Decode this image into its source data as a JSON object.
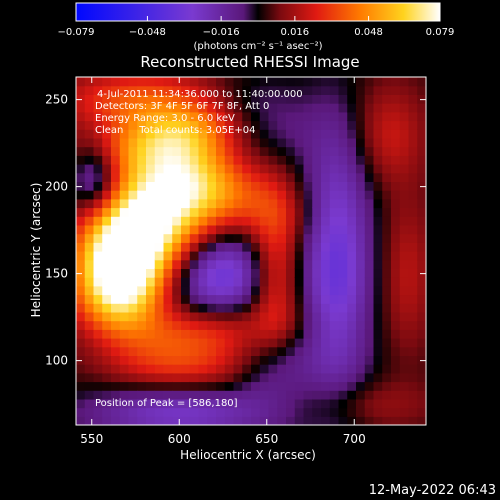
{
  "chart_data": {
    "type": "heatmap",
    "title": "Reconstructed RHESSI Image",
    "xlabel": "Heliocentric X (arcsec)",
    "ylabel": "Heliocentric Y (arcsec)",
    "xlim": [
      541,
      741
    ],
    "ylim": [
      63,
      263
    ],
    "x_ticks": [
      550,
      600,
      650,
      700
    ],
    "y_ticks": [
      100,
      150,
      200,
      250
    ],
    "colorbar": {
      "label": "(photons cm⁻² s⁻¹ asec⁻²)",
      "range": [
        -0.079,
        0.079
      ],
      "ticks": [
        "−0.079",
        "−0.048",
        "−0.016",
        "0.016",
        "0.048",
        "0.079"
      ],
      "tick_values": [
        -0.079,
        -0.048,
        -0.016,
        0.016,
        0.048,
        0.079
      ]
    },
    "annotations": [
      "4-Jul-2011 11:34:36.000 to 11:40:00.000",
      "Detectors: 3F 4F 5F 6F 7F 8F, Att 0",
      "Energy Range: 3.0 - 6.0 keV",
      "Clean     Total counts: 3.05E+04"
    ],
    "peak_label": "Position of Peak = [586,180]",
    "peak": [
      586,
      180
    ],
    "blobs": [
      {
        "x": 586,
        "y": 180,
        "sx": 22,
        "sy": 38,
        "amp": 0.08,
        "rot": -0.5
      },
      {
        "x": 565,
        "y": 150,
        "sx": 16,
        "sy": 26,
        "amp": 0.055,
        "rot": 0
      },
      {
        "x": 600,
        "y": 230,
        "sx": 40,
        "sy": 12,
        "amp": 0.035,
        "rot": 0.2
      },
      {
        "x": 630,
        "y": 195,
        "sx": 30,
        "sy": 14,
        "amp": 0.025,
        "rot": -0.3
      },
      {
        "x": 655,
        "y": 150,
        "sx": 10,
        "sy": 30,
        "amp": 0.03,
        "rot": 0
      },
      {
        "x": 610,
        "y": 115,
        "sx": 40,
        "sy": 12,
        "amp": 0.03,
        "rot": 0.1
      },
      {
        "x": 600,
        "y": 95,
        "sx": 30,
        "sy": 10,
        "amp": 0.02,
        "rot": 0
      },
      {
        "x": 575,
        "y": 250,
        "sx": 30,
        "sy": 12,
        "amp": 0.03,
        "rot": 0
      },
      {
        "x": 720,
        "y": 230,
        "sx": 14,
        "sy": 20,
        "amp": 0.018,
        "rot": 0
      },
      {
        "x": 730,
        "y": 150,
        "sx": 10,
        "sy": 30,
        "amp": 0.015,
        "rot": 0
      },
      {
        "x": 700,
        "y": 75,
        "sx": 30,
        "sy": 10,
        "amp": 0.012,
        "rot": 0
      },
      {
        "x": 690,
        "y": 155,
        "sx": 14,
        "sy": 55,
        "amp": -0.04,
        "rot": 0
      },
      {
        "x": 620,
        "y": 150,
        "sx": 22,
        "sy": 18,
        "amp": -0.045,
        "rot": 0
      },
      {
        "x": 552,
        "y": 205,
        "sx": 10,
        "sy": 15,
        "amp": -0.035,
        "rot": 0
      },
      {
        "x": 640,
        "y": 240,
        "sx": 25,
        "sy": 15,
        "amp": -0.03,
        "rot": 0
      },
      {
        "x": 600,
        "y": 70,
        "sx": 40,
        "sy": 12,
        "amp": -0.03,
        "rot": 0
      },
      {
        "x": 560,
        "y": 110,
        "sx": 20,
        "sy": 15,
        "amp": -0.02,
        "rot": 0
      },
      {
        "x": 655,
        "y": 100,
        "sx": 15,
        "sy": 20,
        "amp": -0.02,
        "rot": 0
      }
    ]
  },
  "timestamp": "12-May-2022 06:43"
}
